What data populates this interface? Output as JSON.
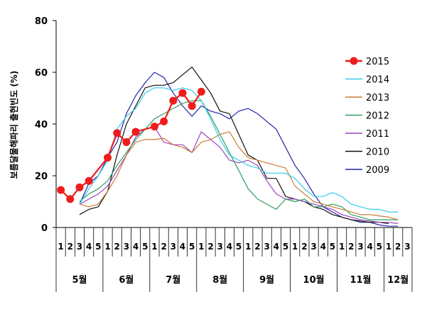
{
  "chart_data": {
    "type": "line",
    "title": "",
    "ylabel": "보름달물해파리 출현빈도 (%)",
    "ylim": [
      0,
      80
    ],
    "y_ticks": [
      0,
      20,
      40,
      60,
      80
    ],
    "grid": false,
    "legend_position": "right",
    "x_week_labels": [
      "1",
      "2",
      "3",
      "4",
      "5",
      "1",
      "2",
      "3",
      "4",
      "5",
      "1",
      "2",
      "3",
      "4",
      "5",
      "1",
      "2",
      "3",
      "4",
      "5",
      "1",
      "2",
      "3",
      "4",
      "5",
      "1",
      "2",
      "3",
      "4",
      "5",
      "1",
      "2",
      "3",
      "4",
      "5",
      "1",
      "2",
      "3"
    ],
    "months": [
      {
        "label": "5월",
        "start": 0,
        "end": 4
      },
      {
        "label": "6월",
        "start": 5,
        "end": 9
      },
      {
        "label": "7월",
        "start": 10,
        "end": 14
      },
      {
        "label": "8월",
        "start": 15,
        "end": 19
      },
      {
        "label": "9월",
        "start": 20,
        "end": 24
      },
      {
        "label": "10월",
        "start": 25,
        "end": 29
      },
      {
        "label": "11월",
        "start": 30,
        "end": 34
      },
      {
        "label": "12월",
        "start": 35,
        "end": 37
      }
    ],
    "series": [
      {
        "name": "2015",
        "color": "#ee1c1c",
        "width": 2.2,
        "marker": true,
        "values": [
          14.5,
          11,
          15.5,
          18,
          null,
          27,
          36.5,
          33,
          37,
          null,
          39,
          41,
          49,
          52,
          47,
          52.5
        ]
      },
      {
        "name": "2014",
        "color": "#33ccee",
        "width": 1.2,
        "values": [
          null,
          null,
          9,
          15,
          20,
          26,
          38,
          43,
          46,
          52,
          54,
          54,
          53,
          54,
          53,
          49,
          42,
          34,
          28,
          26,
          24,
          23,
          21,
          21,
          21,
          19,
          15,
          12,
          12,
          13.5,
          12,
          9,
          8,
          7,
          7,
          6,
          6
        ]
      },
      {
        "name": "2013",
        "color": "#cc7a33",
        "width": 1.2,
        "values": [
          null,
          null,
          9,
          8,
          9,
          14,
          20,
          28,
          33,
          34,
          34,
          34.5,
          32,
          31,
          29,
          33,
          34,
          36,
          37,
          31,
          27,
          26,
          25,
          24,
          23,
          16,
          13,
          10,
          9,
          8,
          7,
          6,
          5,
          5,
          4.5,
          4,
          3
        ]
      },
      {
        "name": "2012",
        "color": "#2e9e5e",
        "width": 1.2,
        "values": [
          null,
          null,
          10,
          13,
          15,
          18,
          24,
          29,
          34,
          38,
          42,
          44,
          46,
          48,
          49,
          49,
          43,
          36,
          29,
          22,
          15,
          11,
          9,
          7,
          11,
          10,
          11,
          8,
          8,
          9,
          8,
          5,
          4,
          3,
          3,
          3,
          3
        ]
      },
      {
        "name": "2011",
        "color": "#9944bb",
        "width": 1.2,
        "values": [
          null,
          null,
          9,
          11,
          13,
          16,
          22,
          28,
          35,
          38,
          39,
          33,
          32,
          32,
          29,
          37,
          34,
          31,
          26,
          25,
          26,
          24,
          18,
          13,
          11,
          11,
          10,
          9,
          8,
          7,
          5,
          4,
          3,
          2.5,
          2,
          2,
          1.5
        ]
      },
      {
        "name": "2010",
        "color": "#111111",
        "width": 1.2,
        "values": [
          null,
          null,
          5,
          7,
          8,
          14,
          28,
          40,
          47,
          54,
          55,
          55,
          56,
          59,
          62,
          57,
          52,
          45,
          44,
          36,
          28,
          26,
          19,
          19,
          12,
          11,
          10,
          8,
          7,
          5,
          4,
          3,
          2.5,
          2,
          2,
          1.5
        ]
      },
      {
        "name": "2009",
        "color": "#2222aa",
        "width": 1.2,
        "values": [
          null,
          null,
          9,
          17,
          20,
          27,
          33,
          44,
          51,
          56,
          60,
          58,
          52,
          47,
          43,
          47,
          45,
          44,
          42,
          45,
          46,
          44,
          41,
          38,
          31,
          24,
          19,
          13,
          8,
          6,
          4,
          3,
          2,
          2,
          1,
          0.5,
          0.5
        ]
      }
    ]
  }
}
